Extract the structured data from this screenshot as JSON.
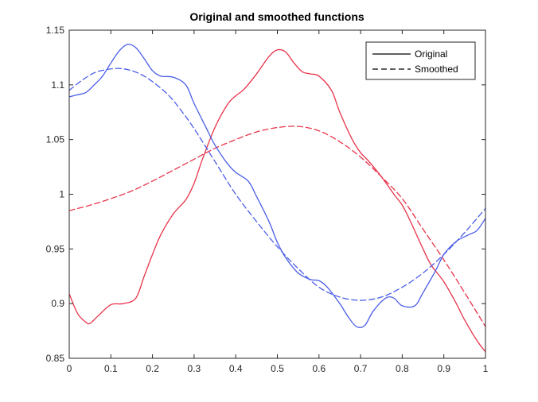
{
  "chart_data": {
    "type": "line",
    "title": "Original and smoothed functions",
    "xlabel": "",
    "ylabel": "",
    "xlim": [
      0,
      1
    ],
    "ylim": [
      0.85,
      1.15
    ],
    "xticks": [
      "0",
      "0.1",
      "0.2",
      "0.3",
      "0.4",
      "0.5",
      "0.6",
      "0.7",
      "0.8",
      "0.9",
      "1"
    ],
    "yticks": [
      "0.85",
      "0.9",
      "0.95",
      "1",
      "1.05",
      "1.1",
      "1.15"
    ],
    "xtick_values": [
      0,
      0.1,
      0.2,
      0.3,
      0.4,
      0.5,
      0.6,
      0.7,
      0.8,
      0.9,
      1
    ],
    "ytick_values": [
      0.85,
      0.9,
      0.95,
      1,
      1.05,
      1.1,
      1.15
    ],
    "grid": false,
    "legend_position": "top-right",
    "legend": [
      {
        "label": "Original",
        "style": "solid"
      },
      {
        "label": "Smoothed",
        "style": "dashed"
      }
    ],
    "series": [
      {
        "color": "#e8334a",
        "style": "solid",
        "x": [
          0,
          0.02,
          0.04,
          0.05,
          0.07,
          0.1,
          0.13,
          0.16,
          0.18,
          0.2,
          0.22,
          0.25,
          0.28,
          0.3,
          0.32,
          0.35,
          0.38,
          0.4,
          0.42,
          0.45,
          0.48,
          0.5,
          0.52,
          0.54,
          0.56,
          0.58,
          0.6,
          0.63,
          0.65,
          0.68,
          0.7,
          0.72,
          0.75,
          0.78,
          0.8,
          0.82,
          0.85,
          0.87,
          0.9,
          0.93,
          0.95,
          0.98,
          1
        ],
        "y": [
          0.909,
          0.891,
          0.883,
          0.882,
          0.889,
          0.899,
          0.9,
          0.905,
          0.925,
          0.945,
          0.963,
          0.982,
          0.995,
          1.01,
          1.032,
          1.061,
          1.082,
          1.09,
          1.096,
          1.11,
          1.126,
          1.132,
          1.13,
          1.12,
          1.112,
          1.11,
          1.108,
          1.095,
          1.075,
          1.05,
          1.038,
          1.03,
          1.016,
          1.0,
          0.99,
          0.975,
          0.95,
          0.935,
          0.92,
          0.9,
          0.885,
          0.866,
          0.856
        ]
      },
      {
        "color": "#e8334a",
        "style": "dashed",
        "x": [
          0,
          0.05,
          0.1,
          0.15,
          0.2,
          0.25,
          0.3,
          0.35,
          0.4,
          0.45,
          0.5,
          0.55,
          0.6,
          0.65,
          0.7,
          0.75,
          0.8,
          0.85,
          0.9,
          0.95,
          1
        ],
        "y": [
          0.985,
          0.99,
          0.996,
          1.003,
          1.012,
          1.022,
          1.032,
          1.042,
          1.05,
          1.057,
          1.061,
          1.062,
          1.058,
          1.048,
          1.034,
          1.016,
          0.996,
          0.968,
          0.94,
          0.91,
          0.879
        ]
      },
      {
        "color": "#4a5ee8",
        "style": "solid",
        "x": [
          0,
          0.02,
          0.04,
          0.06,
          0.08,
          0.1,
          0.12,
          0.14,
          0.16,
          0.18,
          0.2,
          0.22,
          0.25,
          0.28,
          0.3,
          0.33,
          0.35,
          0.38,
          0.4,
          0.43,
          0.45,
          0.48,
          0.5,
          0.52,
          0.55,
          0.58,
          0.6,
          0.62,
          0.65,
          0.67,
          0.69,
          0.71,
          0.73,
          0.76,
          0.78,
          0.8,
          0.83,
          0.85,
          0.88,
          0.9,
          0.93,
          0.96,
          0.98,
          1
        ],
        "y": [
          1.089,
          1.091,
          1.093,
          1.1,
          1.108,
          1.12,
          1.131,
          1.137,
          1.134,
          1.124,
          1.113,
          1.108,
          1.107,
          1.1,
          1.083,
          1.06,
          1.045,
          1.028,
          1.02,
          1.012,
          0.998,
          0.975,
          0.956,
          0.942,
          0.928,
          0.922,
          0.921,
          0.915,
          0.9,
          0.888,
          0.879,
          0.88,
          0.893,
          0.905,
          0.905,
          0.898,
          0.898,
          0.91,
          0.93,
          0.945,
          0.957,
          0.963,
          0.967,
          0.978
        ]
      },
      {
        "color": "#4a5ee8",
        "style": "dashed",
        "x": [
          0,
          0.03,
          0.06,
          0.09,
          0.12,
          0.15,
          0.18,
          0.21,
          0.24,
          0.27,
          0.3,
          0.35,
          0.4,
          0.45,
          0.5,
          0.55,
          0.6,
          0.65,
          0.7,
          0.75,
          0.8,
          0.85,
          0.9,
          0.95,
          1
        ],
        "y": [
          1.095,
          1.104,
          1.111,
          1.114,
          1.115,
          1.113,
          1.108,
          1.1,
          1.09,
          1.076,
          1.06,
          1.03,
          1.0,
          0.975,
          0.952,
          0.932,
          0.915,
          0.906,
          0.903,
          0.906,
          0.915,
          0.928,
          0.945,
          0.965,
          0.987
        ]
      }
    ]
  }
}
